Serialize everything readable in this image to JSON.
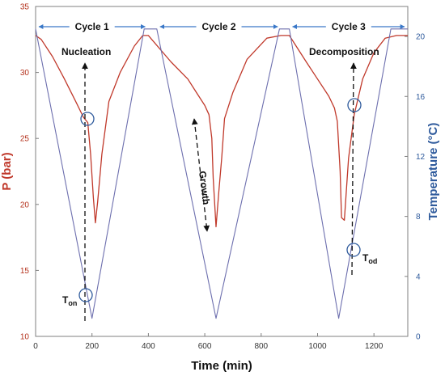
{
  "chart_data": {
    "type": "line",
    "xlabel": "Time (min)",
    "ylabel_left": "P (bar)",
    "ylabel_right": "Temperature (°C)",
    "xlim": [
      0,
      1320
    ],
    "ylim_left": [
      10,
      35
    ],
    "ylim_right": [
      0,
      22
    ],
    "x_ticks": [
      0,
      200,
      400,
      600,
      800,
      1000,
      1200
    ],
    "y_left_ticks": [
      10,
      15,
      20,
      25,
      30,
      35
    ],
    "y_right_ticks": [
      0,
      4,
      8,
      12,
      16,
      20
    ],
    "grid": false,
    "colors": {
      "pressure": "#c0392b",
      "temperature": "#6d6fae",
      "left_axis": "#b5341f",
      "right_axis": "#2e5a9c",
      "cycle_arrow": "#3a78c8"
    },
    "series": [
      {
        "axis": "left",
        "x": [
          0,
          20,
          60,
          100,
          140,
          170,
          185,
          195,
          205,
          212,
          220,
          235,
          260,
          300,
          350,
          380,
          400,
          480,
          540,
          570,
          600,
          615,
          625,
          630,
          640,
          650,
          660,
          670,
          700,
          750,
          820,
          870,
          900,
          960,
          1000,
          1040,
          1060,
          1070,
          1080,
          1085,
          1095,
          1110,
          1130,
          1160,
          1200,
          1240,
          1280,
          1320
        ],
        "y": [
          32.8,
          32.5,
          31.2,
          29.6,
          27.9,
          26.6,
          26.2,
          23.8,
          20.5,
          18.6,
          20.2,
          23.8,
          27.8,
          30.0,
          32.0,
          32.8,
          32.8,
          30.8,
          29.5,
          28.5,
          27.5,
          26.8,
          25.0,
          22.0,
          18.3,
          21.0,
          23.5,
          26.5,
          28.5,
          31.0,
          32.6,
          32.8,
          32.8,
          30.8,
          29.5,
          28.2,
          27.3,
          26.3,
          22.5,
          19.0,
          18.8,
          23.5,
          26.8,
          29.5,
          31.5,
          32.6,
          32.8,
          32.8
        ]
      },
      {
        "axis": "right",
        "x": [
          0,
          200,
          385,
          430,
          640,
          865,
          900,
          1075,
          1260,
          1320
        ],
        "y": [
          20.5,
          1.2,
          20.5,
          20.5,
          1.2,
          20.5,
          20.5,
          1.2,
          20.5,
          20.5
        ]
      }
    ],
    "cycles": [
      {
        "label": "Cycle 1",
        "x_start": 0,
        "x_end": 400
      },
      {
        "label": "Cycle 2",
        "x_start": 430,
        "x_end": 870
      },
      {
        "label": "Cycle 3",
        "x_start": 900,
        "x_end": 1320
      }
    ],
    "annotations": {
      "nucleation": "Nucleation",
      "growth": "Growth",
      "decomposition": "Decomposition",
      "t_on_main": "T",
      "t_on_sub": "on",
      "t_od_main": "T",
      "t_od_sub": "od"
    }
  }
}
